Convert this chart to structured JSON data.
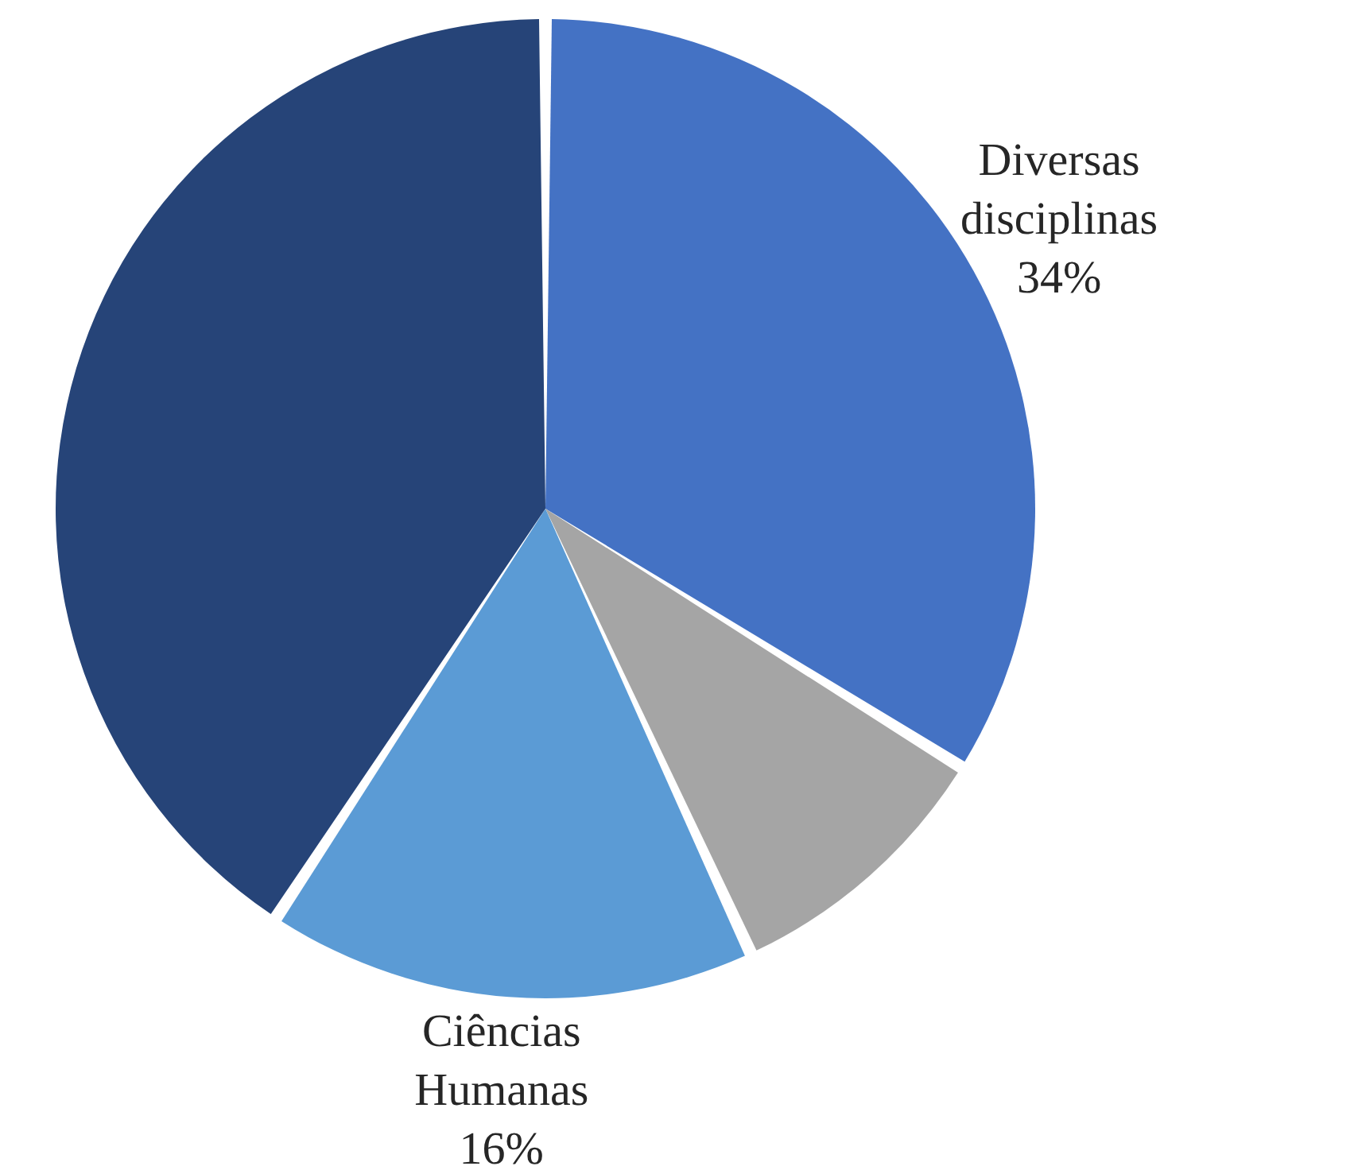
{
  "chart_data": {
    "type": "pie",
    "categories": [
      "Diversas disciplinas",
      null,
      "Ciências Humanas",
      null
    ],
    "values": [
      34,
      9,
      16,
      41
    ],
    "colors": [
      "#4472c4",
      "#a5a5a5",
      "#5b9bd5",
      "#264478"
    ],
    "value_labels": [
      "34%",
      null,
      "16%",
      null
    ]
  }
}
